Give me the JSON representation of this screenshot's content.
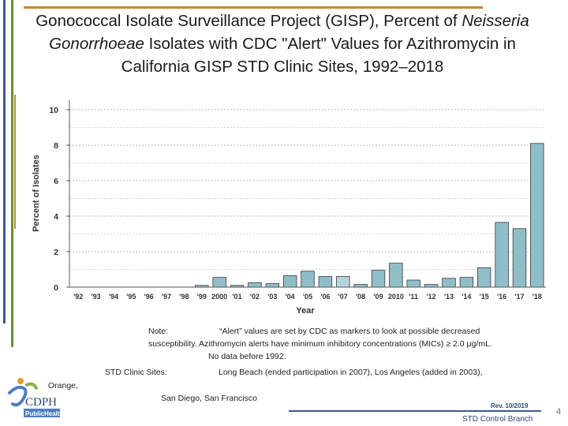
{
  "title": {
    "part1": "Gonococcal Isolate Surveillance Project (GISP), Percent of ",
    "italic": "Neisseria Gonorrhoeae",
    "part2": " Isolates with CDC \"Alert\" Values for Azithromycin in California GISP STD Clinic Sites, 1992–2018"
  },
  "chart_data": {
    "type": "bar",
    "categories": [
      "'92",
      "'93",
      "'94",
      "'95",
      "'96",
      "'97",
      "'98",
      "'99",
      "2000",
      "'01",
      "'02",
      "'03",
      "'04",
      "'05",
      "'06",
      "'07",
      "'08",
      "'09",
      "2010",
      "'11",
      "'12",
      "'13",
      "'14",
      "'15",
      "'16",
      "'17",
      "'18"
    ],
    "values": [
      0,
      0,
      0,
      0,
      0,
      0,
      0,
      0.1,
      0.55,
      0.1,
      0.25,
      0.2,
      0.65,
      0.9,
      0.6,
      0.6,
      0.15,
      0.95,
      1.35,
      0.4,
      0.15,
      0.5,
      0.55,
      1.1,
      3.65,
      3.3,
      8.1
    ],
    "xlabel": "Year",
    "ylabel": "Percent of Isolates",
    "ylim": [
      0,
      10
    ],
    "yticks": [
      0,
      2,
      4,
      6,
      8,
      10
    ],
    "grid": true,
    "bar_color": "#8fbec9",
    "highlight_bar_color": "#b5d3da",
    "highlight_index": 15
  },
  "note": {
    "label": "Note:",
    "line1": "“Alert” values are set by CDC as markers to look at possible decreased",
    "line2": "susceptibility.  Azithromycin alerts have minimum inhibitory concentrations (MICs) ≥ 2.0 μg/mL.",
    "line3": "No data before 1992."
  },
  "sites": {
    "label": "STD Clinic Sites:",
    "line1": "Long Beach (ended participation in 2007), Los Angeles (added in 2003),",
    "orange": "Orange,",
    "line2": "San Diego, San Francisco"
  },
  "footer": {
    "rev": "Rev. 10/2019",
    "branch": "STD Control Branch",
    "page": "4"
  },
  "logo": {
    "text_cdph": "CDPH",
    "text_ph": "PublicHealth"
  },
  "colors": {
    "accent_orange": "#c9892f",
    "accent_green": "#6b8e3a",
    "accent_blue": "#3b5a8a"
  }
}
